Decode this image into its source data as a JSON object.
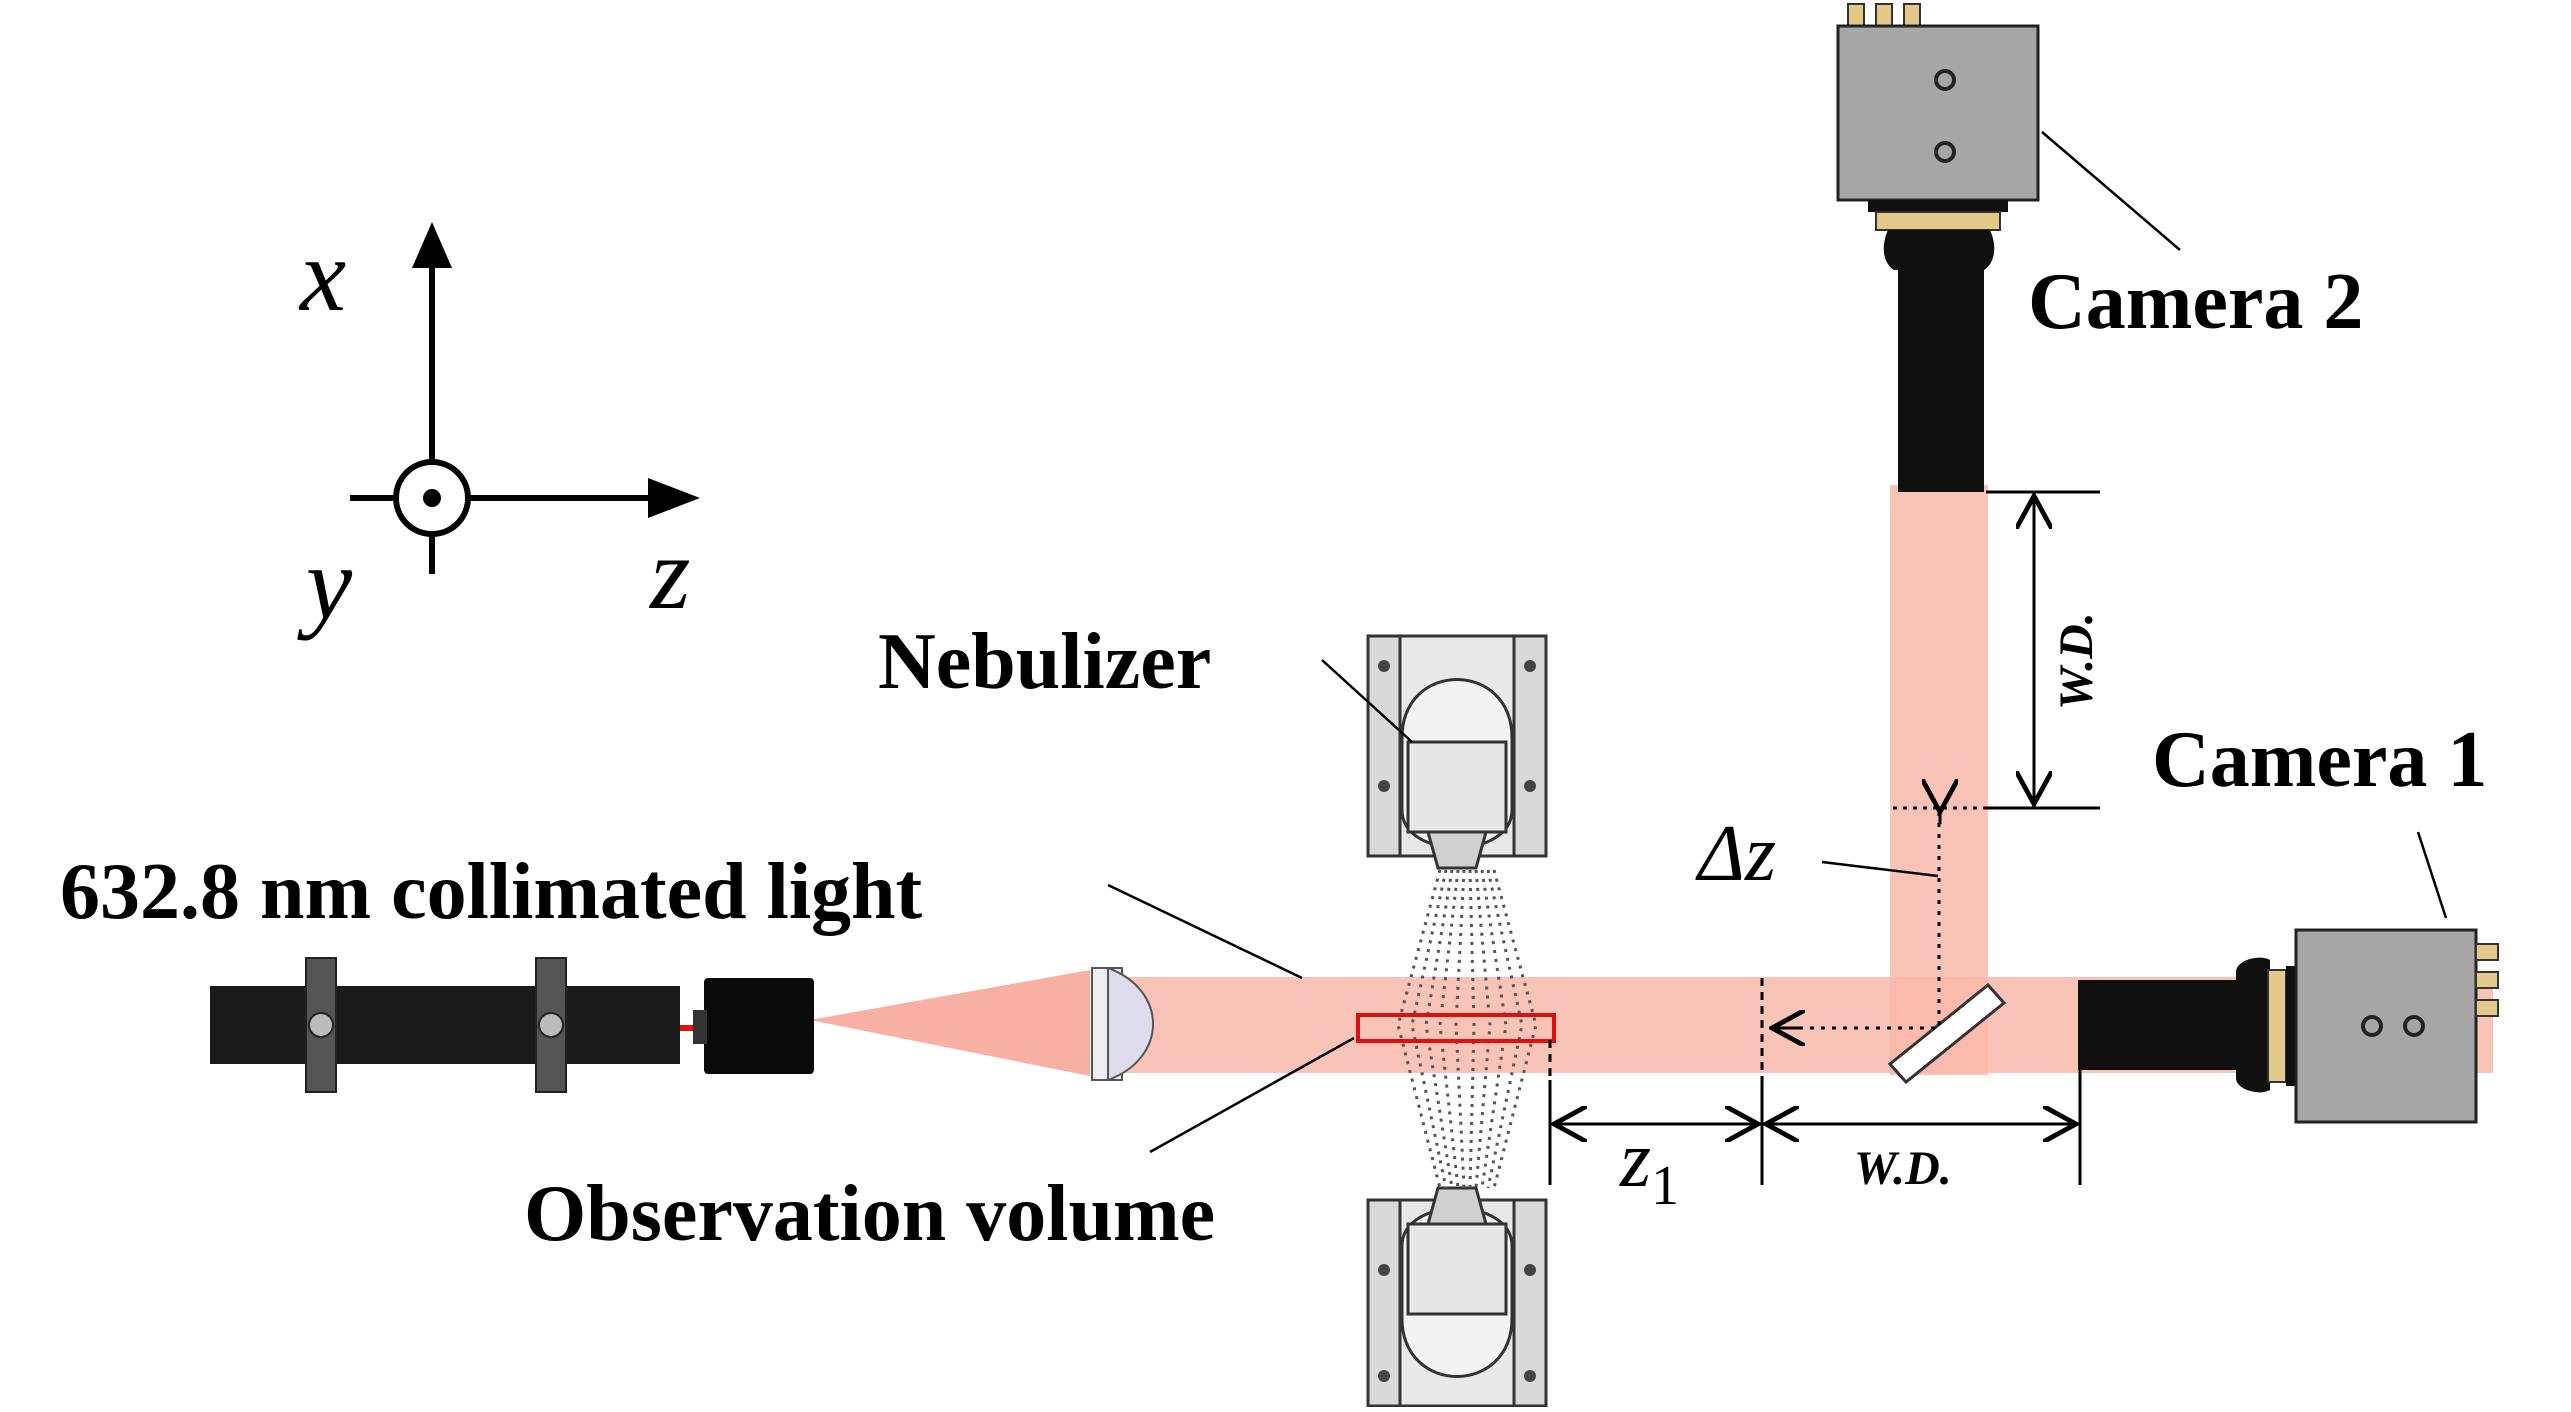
{
  "labels": {
    "camera2": "Camera 2",
    "camera1": "Camera 1",
    "nebulizer": "Nebulizer",
    "light_source": "632.8 nm collimated light",
    "observation_volume": "Observation volume",
    "delta_z": "Δz",
    "z1_base": "z",
    "z1_sub": "1",
    "wd_horizontal": "W.D.",
    "wd_vertical": "W.D."
  },
  "axes": {
    "x": "x",
    "y": "y",
    "z": "z"
  },
  "colors": {
    "beam": "#f9b8aa",
    "beam_cone": "#f49584",
    "laser_line": "#e01010",
    "observation_box": "#e01010",
    "camera_body": "#a6a6a6",
    "camera_connector": "#e3c98a",
    "lens_tube": "#0f0f0f",
    "mount_plate": "#d9d9d9"
  },
  "icons": {
    "axis_y_out_of_page": "dot-in-circle-icon"
  }
}
